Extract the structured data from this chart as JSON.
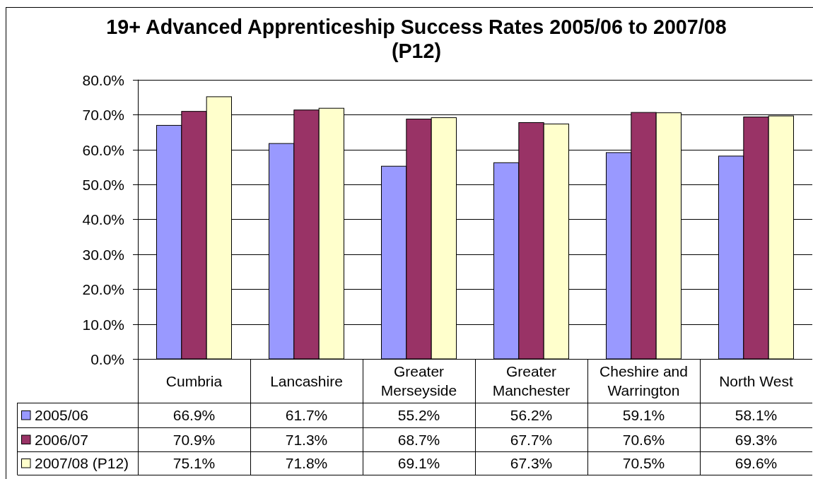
{
  "chart_data": {
    "type": "bar",
    "title": "19+ Advanced Apprenticeship Success Rates 2005/06 to 2007/08\n(P12)",
    "categories": [
      "Cumbria",
      "Lancashire",
      "Greater Merseyside",
      "Greater Manchester",
      "Cheshire and Warrington",
      "North West"
    ],
    "series": [
      {
        "name": "2005/06",
        "color": "#9999ff",
        "values": [
          66.9,
          61.7,
          55.2,
          56.2,
          59.1,
          58.1
        ],
        "value_labels": [
          "66.9%",
          "61.7%",
          "55.2%",
          "56.2%",
          "59.1%",
          "58.1%"
        ]
      },
      {
        "name": "2006/07",
        "color": "#993366",
        "values": [
          70.9,
          71.3,
          68.7,
          67.7,
          70.6,
          69.3
        ],
        "value_labels": [
          "70.9%",
          "71.3%",
          "68.7%",
          "67.7%",
          "70.6%",
          "69.3%"
        ]
      },
      {
        "name": "2007/08 (P12)",
        "color": "#ffffcc",
        "values": [
          75.1,
          71.8,
          69.1,
          67.3,
          70.5,
          69.6
        ],
        "value_labels": [
          "75.1%",
          "71.8%",
          "69.1%",
          "67.3%",
          "70.5%",
          "69.6%"
        ]
      }
    ],
    "ylim": [
      0,
      80
    ],
    "yticks": [
      {
        "value": 0,
        "label": "0.0%"
      },
      {
        "value": 10,
        "label": "10.0%"
      },
      {
        "value": 20,
        "label": "20.0%"
      },
      {
        "value": 30,
        "label": "30.0%"
      },
      {
        "value": 40,
        "label": "40.0%"
      },
      {
        "value": 50,
        "label": "50.0%"
      },
      {
        "value": 60,
        "label": "60.0%"
      },
      {
        "value": 70,
        "label": "70.0%"
      },
      {
        "value": 80,
        "label": "80.0%"
      }
    ],
    "grid": "y",
    "legend": "bottom"
  }
}
